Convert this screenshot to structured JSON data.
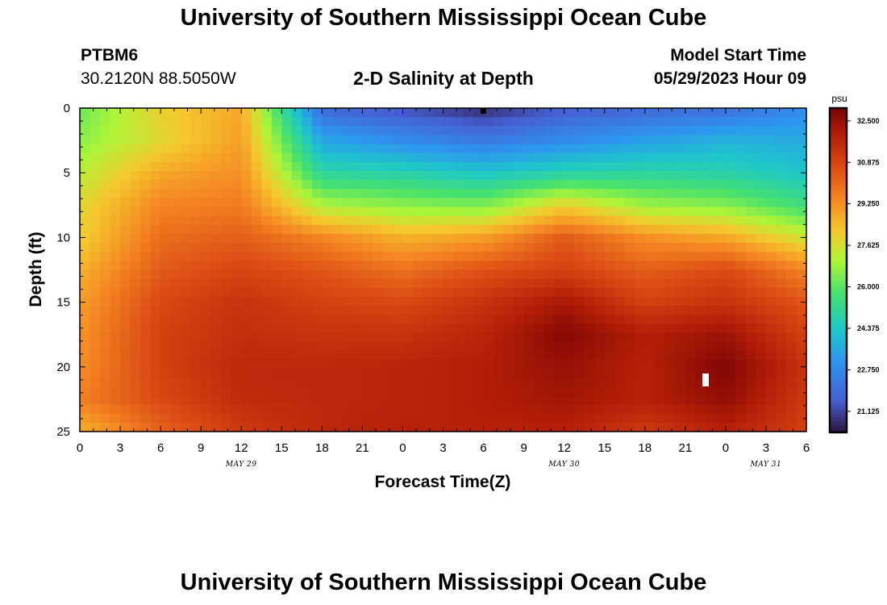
{
  "header": {
    "title": "University of Southern Mississippi Ocean Cube",
    "station": "PTBM6",
    "coords": "30.2120N  88.5050W",
    "subtitle": "2-D Salinity at Depth",
    "model_start_label": "Model Start Time",
    "model_start_value": "05/29/2023 Hour 09"
  },
  "footer": {
    "title": "University of Southern Mississippi Ocean Cube"
  },
  "chart_data": {
    "type": "heatmap",
    "title": "2-D Salinity at Depth",
    "xlabel": "Forecast Time(Z)",
    "ylabel": "Depth (ft)",
    "x_range_hours": [
      0,
      54
    ],
    "y_range_ft": [
      0,
      25
    ],
    "x_tick_labels": [
      "0",
      "3",
      "6",
      "9",
      "12",
      "15",
      "18",
      "21",
      "0",
      "3",
      "6",
      "9",
      "12",
      "15",
      "18",
      "21",
      "0",
      "3",
      "6"
    ],
    "y_tick_labels": [
      "0",
      "5",
      "10",
      "15",
      "20",
      "25"
    ],
    "day_labels": [
      {
        "label": "MAY 29",
        "hour": 12
      },
      {
        "label": "MAY 30",
        "hour": 36
      },
      {
        "label": "MAY 31",
        "hour": 51
      }
    ],
    "colorbar": {
      "unit": "psu",
      "min": 20.3,
      "max": 33.0,
      "tick_labels": [
        "32.500",
        "30.875",
        "29.250",
        "27.625",
        "26.000",
        "24.375",
        "22.750",
        "21.125"
      ],
      "tick_values": [
        32.5,
        30.875,
        29.25,
        27.625,
        26.0,
        24.375,
        22.75,
        21.125
      ]
    },
    "grid_hours": [
      0,
      6,
      12,
      18,
      24,
      30,
      36,
      42,
      48,
      54
    ],
    "grid_depths_ft": [
      0,
      2.5,
      5,
      7.5,
      10,
      12.5,
      15,
      17.5,
      20,
      22.5,
      25
    ],
    "salinity_psu": [
      [
        26.2,
        28.0,
        28.8,
        21.8,
        21.3,
        20.7,
        21.5,
        21.8,
        22.0,
        22.8
      ],
      [
        26.6,
        27.8,
        29.0,
        23.5,
        22.8,
        22.3,
        22.8,
        23.3,
        23.8,
        23.6
      ],
      [
        27.2,
        28.8,
        29.3,
        25.0,
        24.8,
        24.3,
        24.8,
        25.0,
        24.8,
        24.3
      ],
      [
        27.8,
        29.5,
        29.7,
        27.0,
        26.6,
        26.4,
        28.0,
        26.8,
        26.5,
        25.5
      ],
      [
        28.0,
        30.0,
        30.3,
        29.5,
        28.6,
        29.0,
        30.4,
        29.3,
        28.8,
        27.5
      ],
      [
        28.6,
        30.4,
        30.9,
        30.5,
        29.9,
        30.6,
        31.0,
        30.3,
        30.8,
        29.5
      ],
      [
        29.0,
        30.8,
        31.4,
        31.0,
        30.8,
        31.4,
        32.2,
        31.0,
        31.4,
        30.5
      ],
      [
        29.2,
        31.0,
        31.5,
        31.4,
        31.4,
        31.8,
        32.8,
        32.0,
        32.4,
        31.0
      ],
      [
        29.3,
        31.0,
        31.7,
        31.7,
        31.8,
        32.0,
        32.5,
        31.9,
        32.9,
        31.4
      ],
      [
        29.6,
        30.8,
        31.6,
        31.7,
        31.8,
        32.0,
        32.3,
        31.9,
        32.6,
        31.2
      ],
      [
        28.6,
        30.2,
        31.2,
        31.7,
        31.9,
        31.9,
        31.9,
        31.2,
        31.9,
        31.0
      ]
    ]
  }
}
